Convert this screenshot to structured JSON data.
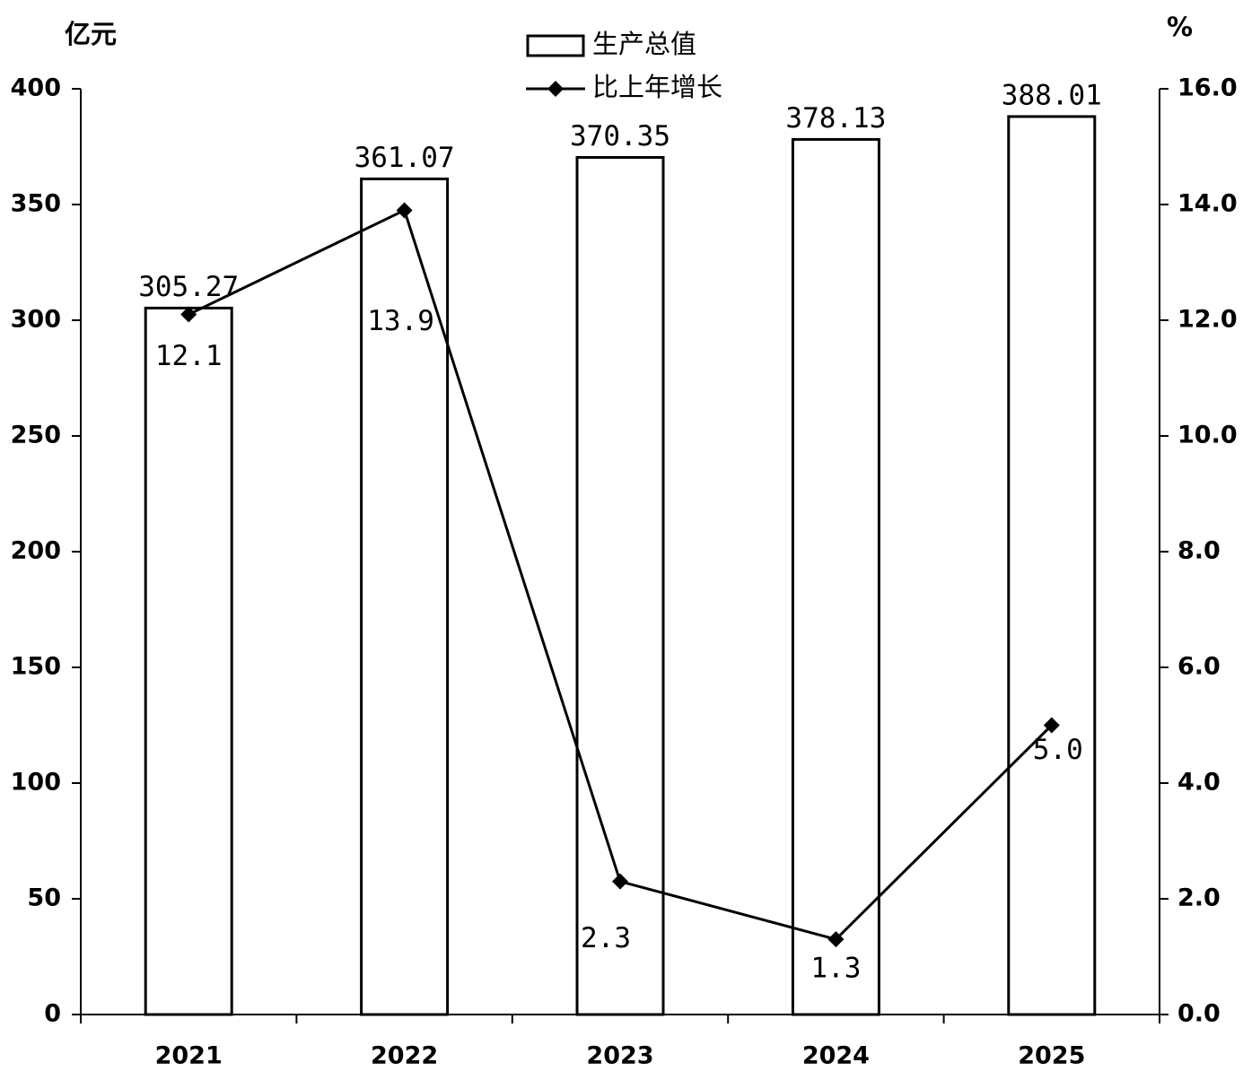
{
  "chart_data": {
    "type": "bar-line",
    "y_label": "亿元",
    "y2_label": "%",
    "categories": [
      "2021",
      "2022",
      "2023",
      "2024",
      "2025"
    ],
    "series": [
      {
        "name": "生产总值",
        "type": "bar",
        "color": "#ffffff",
        "values": [
          305.27,
          361.07,
          370.35,
          378.13,
          388.01
        ]
      },
      {
        "name": "比上年增长",
        "type": "line",
        "color": "#000000",
        "axis": "y2",
        "values": [
          12.1,
          13.9,
          2.3,
          1.3,
          5.0
        ],
        "value_labels": [
          "12.1",
          "13.9",
          "2.3",
          "1.3",
          "5.0"
        ]
      }
    ],
    "ylim": [
      0,
      400
    ],
    "yticks": [
      0,
      50,
      100,
      150,
      200,
      250,
      300,
      350,
      400
    ],
    "y2lim": [
      0,
      16
    ],
    "y2ticks": [
      {
        "value": 0,
        "label": "0.0"
      },
      {
        "value": 2,
        "label": "2.0"
      },
      {
        "value": 4,
        "label": "4.0"
      },
      {
        "value": 6,
        "label": "6.0"
      },
      {
        "value": 8,
        "label": "8.0"
      },
      {
        "value": 10,
        "label": "10.0"
      },
      {
        "value": 12,
        "label": "12.0"
      },
      {
        "value": 14,
        "label": "14.0"
      },
      {
        "value": 16,
        "label": "16.0"
      }
    ]
  }
}
